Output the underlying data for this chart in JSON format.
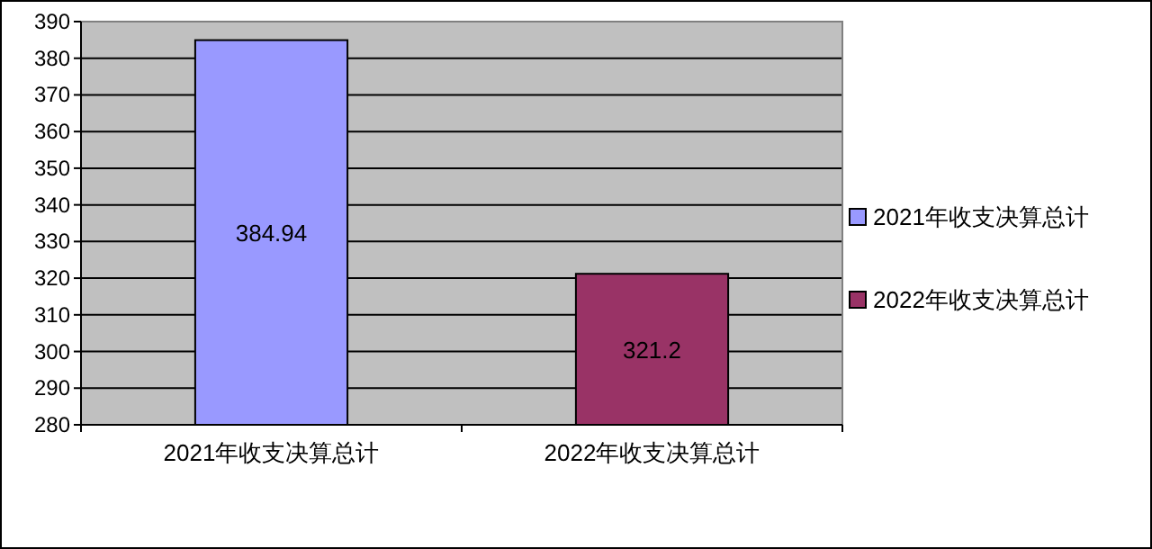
{
  "chart_data": {
    "type": "bar",
    "categories": [
      "2021年收支决算总计",
      "2022年收支决算总计"
    ],
    "series": [
      {
        "name": "2021年收支决算总计",
        "color": "#9999ff",
        "values": [
          384.94,
          null
        ]
      },
      {
        "name": "2022年收支决算总计",
        "color": "#993366",
        "values": [
          null,
          321.2
        ]
      }
    ],
    "ylim": [
      280,
      390
    ],
    "yticks": [
      280,
      290,
      300,
      310,
      320,
      330,
      340,
      350,
      360,
      370,
      380,
      390
    ],
    "grid": "y",
    "data_labels": true,
    "legend": "right"
  }
}
